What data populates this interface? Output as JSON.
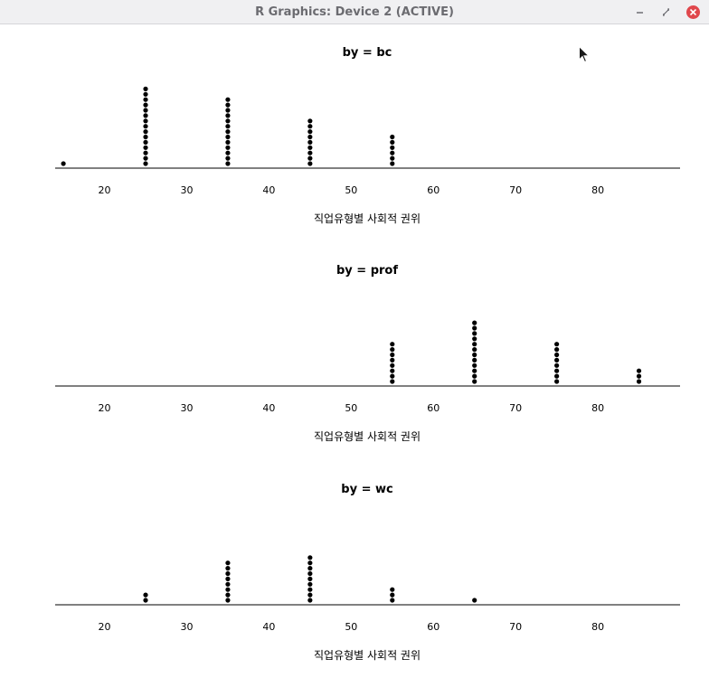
{
  "window": {
    "title": "R Graphics: Device 2 (ACTIVE)",
    "controls": [
      "minimize",
      "maximize",
      "close"
    ]
  },
  "icons": {
    "minimize": "minimize-icon",
    "maximize": "maximize-icon",
    "close": "close-icon",
    "cursor": "mouse-pointer-icon"
  },
  "colors": {
    "points": "#000000",
    "close_button": "#e0474c",
    "titlebar": "#f0f0f2"
  },
  "chart_data": [
    {
      "type": "scatter",
      "subtype": "stripchart-stacked",
      "title": "by = bc",
      "xlabel": "직업유형별 사회적 권위",
      "ylabel": "",
      "xlim": [
        14,
        90
      ],
      "xticks": [
        20,
        30,
        40,
        50,
        60,
        70,
        80
      ],
      "grid": false,
      "x": [
        15,
        25,
        35,
        45,
        55
      ],
      "counts": [
        1,
        15,
        13,
        9,
        6
      ]
    },
    {
      "type": "scatter",
      "subtype": "stripchart-stacked",
      "title": "by = prof",
      "xlabel": "직업유형별 사회적 권위",
      "ylabel": "",
      "xlim": [
        14,
        90
      ],
      "xticks": [
        20,
        30,
        40,
        50,
        60,
        70,
        80
      ],
      "grid": false,
      "x": [
        55,
        65,
        75,
        85
      ],
      "counts": [
        8,
        12,
        8,
        3
      ]
    },
    {
      "type": "scatter",
      "subtype": "stripchart-stacked",
      "title": "by = wc",
      "xlabel": "직업유형별 사회적 권위",
      "ylabel": "",
      "xlim": [
        14,
        90
      ],
      "xticks": [
        20,
        30,
        40,
        50,
        60,
        70,
        80
      ],
      "grid": false,
      "x": [
        25,
        35,
        45,
        55,
        65
      ],
      "counts": [
        2,
        8,
        9,
        3,
        1
      ]
    }
  ]
}
